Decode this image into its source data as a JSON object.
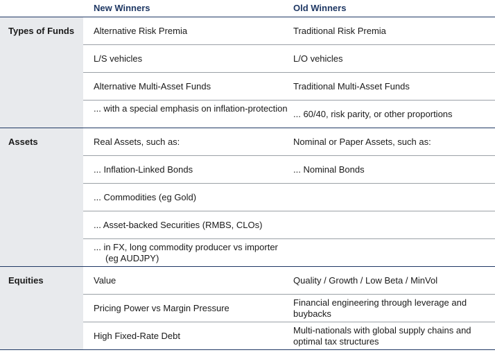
{
  "header": {
    "new_winners": "New Winners",
    "old_winners": "Old Winners"
  },
  "sections": [
    {
      "label": "Types of Funds",
      "rows": [
        {
          "new": "Alternative Risk Premia",
          "old": "Traditional Risk Premia"
        },
        {
          "new": "L/S vehicles",
          "old": "L/O vehicles"
        },
        {
          "new": "Alternative Multi-Asset Funds",
          "old": "Traditional Multi-Asset Funds"
        },
        {
          "new": "... with a special emphasis on inflation-protection",
          "old": "... 60/40, risk parity, or other proportions"
        }
      ]
    },
    {
      "label": "Assets",
      "rows": [
        {
          "new": "Real Assets, such as:",
          "old": "Nominal or Paper Assets, such as:"
        },
        {
          "new": "... Inflation-Linked Bonds",
          "old": "... Nominal Bonds"
        },
        {
          "new": "... Commodities (eg Gold)",
          "old": ""
        },
        {
          "new": "... Asset-backed Securities (RMBS, CLOs)",
          "old": ""
        },
        {
          "new": "... in FX, long commodity producer vs importer (eg AUDJPY)",
          "old": ""
        }
      ]
    },
    {
      "label": "Equities",
      "rows": [
        {
          "new": "Value",
          "old": "Quality / Growth / Low Beta / MinVol"
        },
        {
          "new": "Pricing Power vs Margin Pressure",
          "old": "Financial engineering through leverage and buybacks"
        },
        {
          "new": "High Fixed-Rate Debt",
          "old": "Multi-nationals with global supply chains and optimal tax structures"
        }
      ]
    }
  ]
}
